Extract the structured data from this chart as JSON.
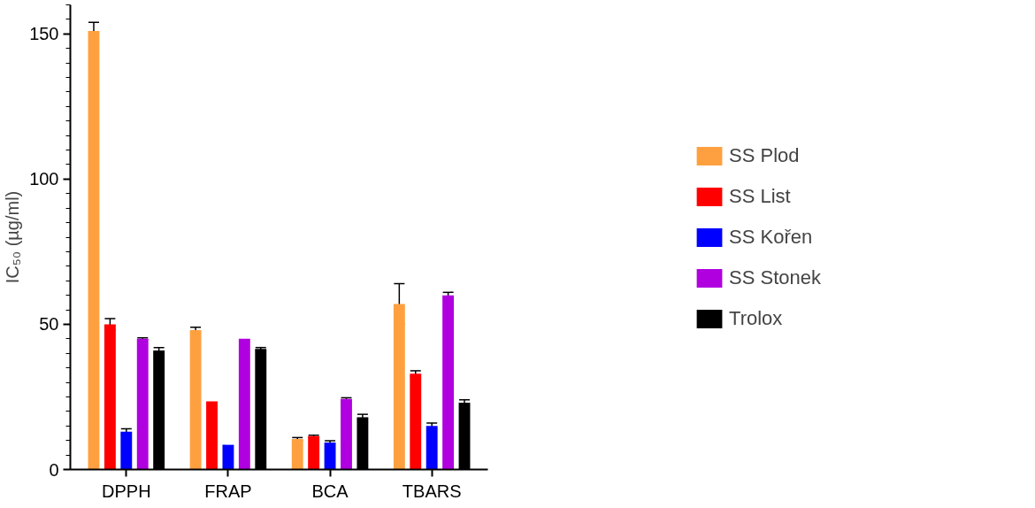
{
  "chart_data": {
    "type": "bar",
    "ylabel": "IC₅₀ (µg/ml)",
    "categories": [
      "DPPH",
      "FRAP",
      "BCA",
      "TBARS"
    ],
    "series": [
      {
        "name": "SS Plod",
        "color": "#ffa040",
        "values": [
          151,
          48,
          10.5,
          57
        ],
        "errors": [
          3,
          1,
          0.5,
          7
        ]
      },
      {
        "name": "SS List",
        "color": "#ff0000",
        "values": [
          50,
          23.5,
          11.5,
          33
        ],
        "errors": [
          2,
          null,
          0.3,
          1
        ]
      },
      {
        "name": "SS Kořen",
        "color": "#0000ff",
        "values": [
          13,
          8.5,
          9.3,
          15
        ],
        "errors": [
          1,
          null,
          0.6,
          1
        ]
      },
      {
        "name": "SS Stonek",
        "color": "#b000e0",
        "values": [
          45,
          45,
          24.3,
          60
        ],
        "errors": [
          0.3,
          null,
          0.4,
          1
        ]
      },
      {
        "name": "Trolox",
        "color": "#000000",
        "values": [
          41,
          41.5,
          18,
          23
        ],
        "errors": [
          1,
          0.5,
          1,
          1
        ]
      }
    ],
    "ylim": [
      0,
      160
    ],
    "yticks": [
      0,
      50,
      100,
      150
    ],
    "grid": false,
    "legend": "right"
  }
}
